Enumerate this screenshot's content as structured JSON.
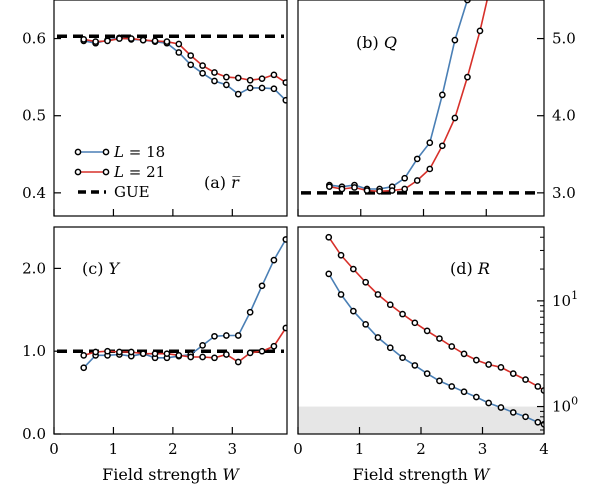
{
  "colors": {
    "L18": "#4a7fb5",
    "L21": "#d7302a",
    "GUE": "#000000",
    "shade": "#e6e6e6"
  },
  "chart_data": [
    {
      "id": "a",
      "type": "line",
      "panel_label": "(a) r̅",
      "xlabel": "",
      "ylabel": "",
      "xlim": [
        0,
        3.92
      ],
      "ylim": [
        0.37,
        0.65
      ],
      "yticks": [
        "0.4",
        "0.5",
        "0.6"
      ],
      "xticks": [],
      "reference": {
        "name": "GUE",
        "y": 0.603
      },
      "series": [
        {
          "name": "L = 18",
          "x": [
            0.5,
            0.7,
            0.9,
            1.1,
            1.3,
            1.5,
            1.7,
            1.9,
            2.1,
            2.3,
            2.5,
            2.7,
            2.9,
            3.1,
            3.3,
            3.5,
            3.7,
            3.9
          ],
          "y": [
            0.597,
            0.594,
            0.598,
            0.601,
            0.599,
            0.598,
            0.596,
            0.594,
            0.582,
            0.566,
            0.555,
            0.545,
            0.54,
            0.528,
            0.536,
            0.536,
            0.535,
            0.52
          ]
        },
        {
          "name": "L = 21",
          "x": [
            0.5,
            0.7,
            0.9,
            1.1,
            1.3,
            1.5,
            1.7,
            1.9,
            2.1,
            2.3,
            2.5,
            2.7,
            2.9,
            3.1,
            3.3,
            3.5,
            3.7,
            3.9
          ],
          "y": [
            0.599,
            0.596,
            0.597,
            0.6,
            0.6,
            0.598,
            0.597,
            0.596,
            0.593,
            0.578,
            0.565,
            0.556,
            0.55,
            0.549,
            0.546,
            0.548,
            0.553,
            0.543
          ]
        }
      ],
      "legend": [
        "L = 18",
        "L = 21",
        "GUE"
      ]
    },
    {
      "id": "b",
      "type": "line",
      "panel_label": "(b) Q",
      "xlabel": "",
      "ylabel": "",
      "xlim": [
        0,
        3.92
      ],
      "ylim": [
        2.7,
        5.5
      ],
      "yticks": [
        "3.0",
        "4.0",
        "5.0"
      ],
      "xticks": [],
      "reference": {
        "name": "GUE",
        "y": 3.0
      },
      "series": [
        {
          "name": "L = 18",
          "x": [
            0.5,
            0.7,
            0.9,
            1.1,
            1.3,
            1.5,
            1.7,
            1.9,
            2.1,
            2.3,
            2.5,
            2.7,
            2.9
          ],
          "y": [
            3.1,
            3.08,
            3.1,
            3.05,
            3.05,
            3.08,
            3.19,
            3.44,
            3.65,
            4.27,
            4.98,
            5.5,
            6.0
          ]
        },
        {
          "name": "L = 21",
          "x": [
            0.5,
            0.7,
            0.9,
            1.1,
            1.3,
            1.5,
            1.7,
            1.9,
            2.1,
            2.3,
            2.5,
            2.7,
            2.9,
            3.1
          ],
          "y": [
            3.08,
            3.05,
            3.07,
            3.03,
            3.02,
            3.03,
            3.05,
            3.16,
            3.31,
            3.61,
            3.97,
            4.5,
            5.1,
            5.8
          ]
        }
      ]
    },
    {
      "id": "c",
      "type": "line",
      "panel_label": "(c) Y",
      "xlabel": "Field strength W",
      "ylabel": "",
      "xlim": [
        0,
        3.92
      ],
      "ylim": [
        0,
        2.5
      ],
      "yticks": [
        "0.0",
        "1.0",
        "2.0"
      ],
      "xticks": [
        "0",
        "1",
        "2",
        "3"
      ],
      "reference": {
        "name": "GUE",
        "y": 1.0
      },
      "series": [
        {
          "name": "L = 18",
          "x": [
            0.5,
            0.7,
            0.9,
            1.1,
            1.3,
            1.5,
            1.7,
            1.9,
            2.1,
            2.3,
            2.5,
            2.7,
            2.9,
            3.1,
            3.3,
            3.5,
            3.7,
            3.9
          ],
          "y": [
            0.8,
            0.95,
            0.95,
            0.96,
            0.94,
            0.97,
            0.92,
            0.92,
            0.94,
            0.96,
            1.07,
            1.18,
            1.19,
            1.19,
            1.47,
            1.79,
            2.1,
            2.35
          ]
        },
        {
          "name": "L = 21",
          "x": [
            0.5,
            0.7,
            0.9,
            1.1,
            1.3,
            1.5,
            1.7,
            1.9,
            2.1,
            2.3,
            2.5,
            2.7,
            2.9,
            3.1,
            3.3,
            3.5,
            3.7,
            3.9
          ],
          "y": [
            0.95,
            0.99,
            1.0,
            0.99,
            0.99,
            0.97,
            0.97,
            0.97,
            0.95,
            0.93,
            0.93,
            0.92,
            0.96,
            0.87,
            0.98,
            1.0,
            1.06,
            1.28
          ]
        }
      ]
    },
    {
      "id": "d",
      "type": "line",
      "panel_label": "(d) R",
      "xlabel": "Field strength W",
      "ylabel": "",
      "xlim": [
        0,
        4.0
      ],
      "ylim": [
        0.55,
        50
      ],
      "yscale": "log",
      "yticks": [
        "10^0",
        "10^1"
      ],
      "xticks": [
        "0",
        "1",
        "2",
        "3",
        "4"
      ],
      "shaded_below": 1.0,
      "series": [
        {
          "name": "L = 18",
          "x": [
            0.5,
            0.7,
            0.9,
            1.1,
            1.3,
            1.5,
            1.7,
            1.9,
            2.1,
            2.3,
            2.5,
            2.7,
            2.9,
            3.1,
            3.3,
            3.5,
            3.7,
            3.9,
            4.0
          ],
          "y": [
            18.0,
            11.5,
            8.0,
            6.0,
            4.5,
            3.6,
            2.9,
            2.45,
            2.05,
            1.75,
            1.55,
            1.38,
            1.23,
            1.08,
            0.98,
            0.88,
            0.8,
            0.71,
            0.68
          ]
        },
        {
          "name": "L = 21",
          "x": [
            0.5,
            0.7,
            0.9,
            1.1,
            1.3,
            1.5,
            1.7,
            1.9,
            2.1,
            2.3,
            2.5,
            2.7,
            2.9,
            3.1,
            3.3,
            3.5,
            3.7,
            3.9,
            4.0
          ],
          "y": [
            40.0,
            27.0,
            20.0,
            15.0,
            11.5,
            9.2,
            7.5,
            6.2,
            5.2,
            4.4,
            3.7,
            3.15,
            2.75,
            2.5,
            2.35,
            2.05,
            1.8,
            1.55,
            1.42
          ]
        }
      ]
    }
  ]
}
